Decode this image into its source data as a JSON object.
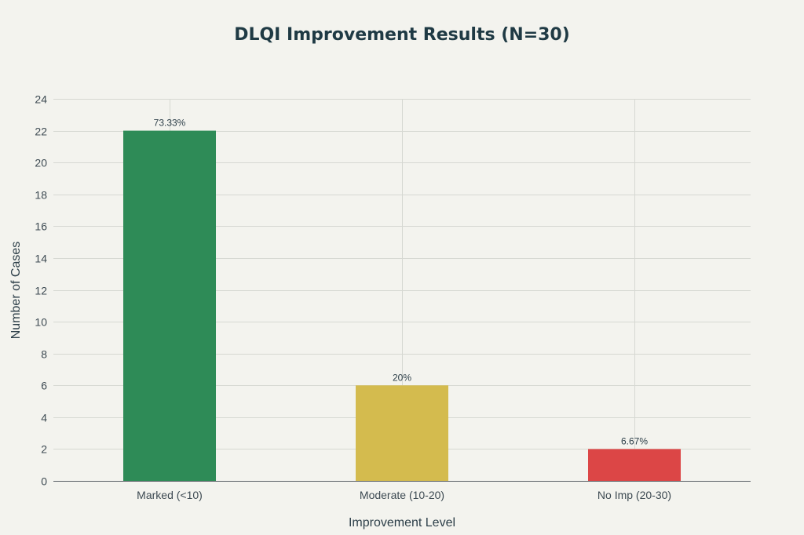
{
  "chart_data": {
    "type": "bar",
    "title": "DLQI Improvement Results (N=30)",
    "xlabel": "Improvement Level",
    "ylabel": "Number of Cases",
    "categories": [
      "Marked (<10)",
      "Moderate (10-20)",
      "No Imp (20-30)"
    ],
    "values": [
      22,
      6,
      2
    ],
    "data_labels": [
      "73.33%",
      "20%",
      "6.67%"
    ],
    "colors": [
      "#2e8b57",
      "#d4bb4e",
      "#dc4646"
    ],
    "ylim": [
      0,
      24
    ],
    "yticks": [
      0,
      2,
      4,
      6,
      8,
      10,
      12,
      14,
      16,
      18,
      20,
      22,
      24
    ],
    "grid": true,
    "legend": "none"
  }
}
